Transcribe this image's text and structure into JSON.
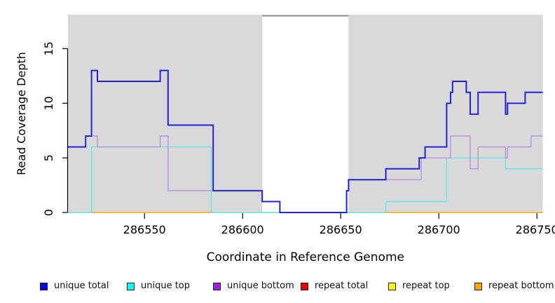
{
  "figure": {
    "xlabel": "Coordinate in Reference Genome",
    "ylabel": "Read Coverage Depth"
  },
  "chart_data": {
    "type": "line",
    "subtype": "step",
    "title": "",
    "xlabel": "Coordinate in Reference Genome",
    "ylabel": "Read Coverage Depth",
    "xlim": [
      286511,
      286753
    ],
    "ylim": [
      0,
      18.1
    ],
    "x_ticks": [
      286550,
      286600,
      286650,
      286700,
      286750
    ],
    "y_ticks": [
      0,
      5,
      10,
      15
    ],
    "grid": false,
    "legend_position": "bottom",
    "background_regions": [
      {
        "name": "left-shaded-region",
        "from": 286511,
        "to": 286610,
        "color": "#d9d9d9"
      },
      {
        "name": "right-shaded-region",
        "from": 286654,
        "to": 286753,
        "color": "#d9d9d9"
      }
    ],
    "gap_top_line": {
      "from": 286610,
      "to": 286654,
      "value": 18.0,
      "color": "#8c8c8c"
    },
    "baseline_blend": {
      "color": "#90d8a0",
      "value": 0,
      "segments": [
        [
          286511,
          286523
        ],
        [
          286584,
          286673
        ]
      ]
    },
    "series": [
      {
        "name": "unique total",
        "line_color": "#2222dd",
        "legend_color": "#0000ee",
        "width": 2,
        "points": [
          [
            286511,
            6
          ],
          [
            286520,
            7
          ],
          [
            286523,
            13
          ],
          [
            286526,
            12
          ],
          [
            286558,
            13
          ],
          [
            286562,
            8
          ],
          [
            286585,
            2
          ],
          [
            286610,
            1
          ],
          [
            286619,
            0
          ],
          [
            286653,
            2
          ],
          [
            286654,
            3
          ],
          [
            286673,
            4
          ],
          [
            286690,
            5
          ],
          [
            286693,
            6
          ],
          [
            286704,
            10
          ],
          [
            286706,
            11
          ],
          [
            286707,
            12
          ],
          [
            286714,
            11
          ],
          [
            286716,
            9
          ],
          [
            286720,
            11
          ],
          [
            286734,
            9
          ],
          [
            286735,
            10
          ],
          [
            286744,
            11
          ]
        ]
      },
      {
        "name": "unique top",
        "line_color": "#5ce6e6",
        "legend_color": "#00ffff",
        "width": 1.3,
        "points": [
          [
            286511,
            0
          ],
          [
            286523,
            6
          ],
          [
            286584,
            0
          ],
          [
            286673,
            1
          ],
          [
            286704,
            5
          ],
          [
            286734,
            4
          ]
        ]
      },
      {
        "name": "unique bottom",
        "line_color": "#b48ce0",
        "legend_color": "#a020f0",
        "width": 1.3,
        "points": [
          [
            286511,
            6
          ],
          [
            286520,
            7
          ],
          [
            286526,
            6
          ],
          [
            286558,
            7
          ],
          [
            286562,
            2
          ],
          [
            286610,
            1
          ],
          [
            286619,
            0
          ],
          [
            286653,
            2
          ],
          [
            286654,
            3
          ],
          [
            286691,
            5
          ],
          [
            286706,
            7
          ],
          [
            286716,
            4
          ],
          [
            286720,
            6
          ],
          [
            286734,
            5
          ],
          [
            286735,
            6
          ],
          [
            286747,
            7
          ]
        ]
      },
      {
        "name": "repeat total",
        "line_color": "#e80000",
        "legend_color": "#e80000",
        "width": 1.3,
        "hidden_under_other_lines": true,
        "points": [
          [
            286511,
            0
          ]
        ]
      },
      {
        "name": "repeat top",
        "line_color": "#ffff00",
        "legend_color": "#ffff00",
        "width": 1.3,
        "hidden_under_other_lines": true,
        "points": [
          [
            286511,
            0
          ]
        ]
      },
      {
        "name": "repeat bottom",
        "line_color": "#ffa500",
        "legend_color": "#ffa500",
        "width": 1.5,
        "points": [
          [
            286511,
            0
          ]
        ],
        "visible_segments": [
          [
            286523,
            286584
          ],
          [
            286673,
            286753
          ]
        ]
      }
    ]
  },
  "legend": {
    "items": [
      {
        "label": "unique total",
        "color": "#0000ee"
      },
      {
        "label": "unique top",
        "color": "#00ffff"
      },
      {
        "label": "unique bottom",
        "color": "#a020f0"
      },
      {
        "label": "repeat total",
        "color": "#e80000"
      },
      {
        "label": "repeat top",
        "color": "#ffff00"
      },
      {
        "label": "repeat bottom",
        "color": "#ffa500"
      }
    ]
  }
}
